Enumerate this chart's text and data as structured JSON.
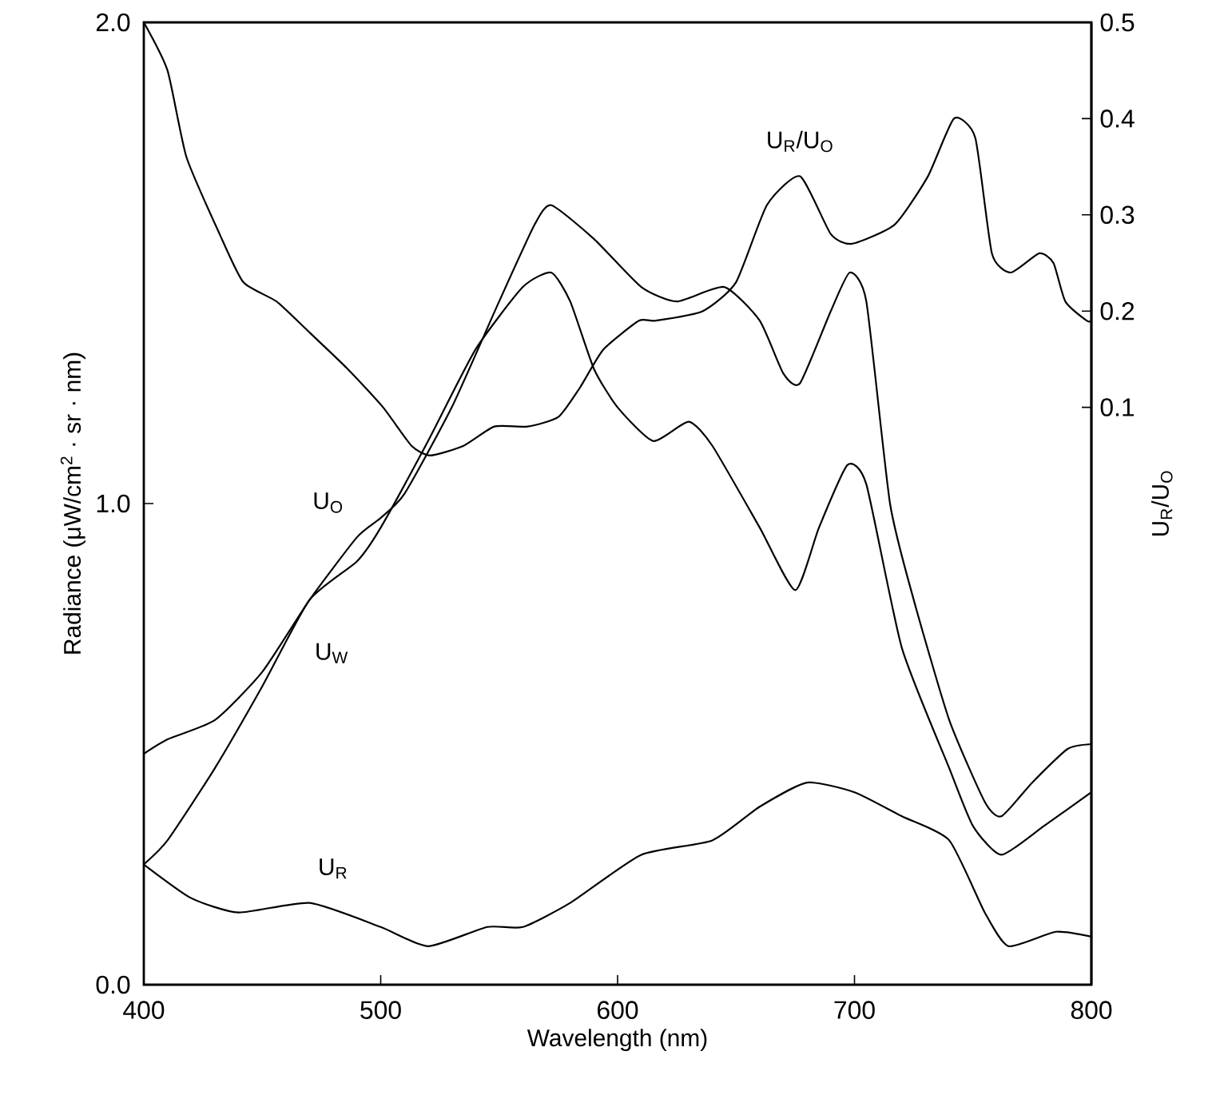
{
  "chart_data": {
    "type": "line",
    "xlabel": "Wavelength (nm)",
    "ylabel": "Radiance (μW/cm$^{2}$ · sr · nm)",
    "y2label": "U$_{R}$/U$_{O}$",
    "xlim": [
      400,
      800
    ],
    "xticks": [
      400,
      500,
      600,
      700,
      800
    ],
    "ylim": [
      0,
      2
    ],
    "yticks": [
      {
        "value": 0,
        "label": "0.0"
      },
      {
        "value": 1,
        "label": "1.0"
      },
      {
        "value": 2,
        "label": "2.0"
      }
    ],
    "y2lim": [
      -0.5,
      0.5
    ],
    "y2ticks": [
      0.1,
      0.2,
      0.3,
      0.4,
      0.5
    ],
    "line_style": "solid",
    "series": [
      {
        "name": "U$_{R}$/U$_{O}$",
        "color": "#000000",
        "x": [
          400,
          410,
          418,
          432,
          442,
          456,
          469,
          486,
          501,
          513,
          521,
          535,
          548,
          562,
          575,
          584,
          594,
          609,
          616,
          636,
          650,
          663,
          677,
          690,
          699,
          717,
          731,
          742,
          751,
          758,
          766,
          778,
          784,
          789,
          798,
          800
        ],
        "values": [
          0.5,
          0.45,
          0.36,
          0.28,
          0.23,
          0.21,
          0.18,
          0.14,
          0.1,
          0.06,
          0.05,
          0.06,
          0.08,
          0.08,
          0.09,
          0.12,
          0.16,
          0.19,
          0.19,
          0.2,
          0.23,
          0.31,
          0.34,
          0.28,
          0.27,
          0.29,
          0.34,
          0.4,
          0.38,
          0.26,
          0.24,
          0.26,
          0.25,
          0.21,
          0.19,
          0.19
        ],
        "axis": "y2"
      },
      {
        "name": "U$_{O}$",
        "color": "#000000",
        "x": [
          400,
          410,
          430,
          450,
          470,
          490,
          500,
          510,
          530,
          550,
          565,
          572,
          590,
          610,
          625,
          645,
          660,
          670,
          677,
          690,
          698,
          705,
          715,
          725,
          740,
          755,
          762,
          775,
          790,
          800
        ],
        "values": [
          0.48,
          0.51,
          0.55,
          0.65,
          0.8,
          0.93,
          0.97,
          1.02,
          1.2,
          1.42,
          1.58,
          1.62,
          1.55,
          1.45,
          1.42,
          1.45,
          1.38,
          1.27,
          1.25,
          1.4,
          1.48,
          1.42,
          1.0,
          0.8,
          0.55,
          0.38,
          0.35,
          0.42,
          0.49,
          0.5
        ]
      },
      {
        "name": "U$_{W}$",
        "color": "#000000",
        "x": [
          400,
          410,
          430,
          450,
          470,
          490,
          500,
          520,
          540,
          560,
          572,
          580,
          590,
          600,
          615,
          630,
          640,
          660,
          675,
          685,
          697,
          705,
          720,
          740,
          750,
          762,
          780,
          800
        ],
        "values": [
          0.25,
          0.3,
          0.45,
          0.62,
          0.8,
          0.88,
          0.95,
          1.13,
          1.32,
          1.45,
          1.48,
          1.42,
          1.28,
          1.2,
          1.13,
          1.17,
          1.12,
          0.95,
          0.82,
          0.95,
          1.08,
          1.04,
          0.7,
          0.45,
          0.33,
          0.27,
          0.33,
          0.4
        ]
      },
      {
        "name": "U$_{R}$",
        "color": "#000000",
        "x": [
          400,
          420,
          440,
          470,
          500,
          520,
          545,
          560,
          580,
          610,
          640,
          660,
          680,
          700,
          720,
          740,
          755,
          765,
          785,
          800
        ],
        "values": [
          0.25,
          0.18,
          0.15,
          0.17,
          0.12,
          0.08,
          0.12,
          0.12,
          0.17,
          0.27,
          0.3,
          0.37,
          0.42,
          0.4,
          0.35,
          0.3,
          0.15,
          0.08,
          0.11,
          0.1
        ]
      }
    ]
  }
}
